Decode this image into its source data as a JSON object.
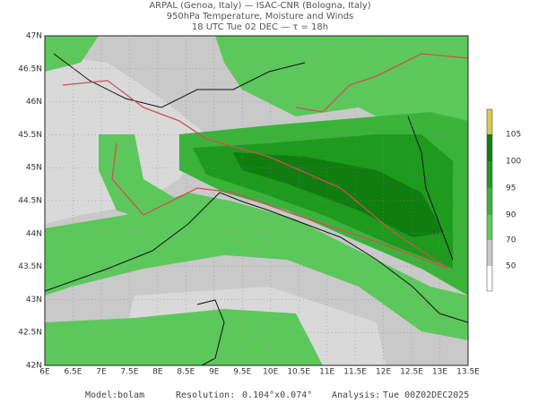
{
  "header": {
    "line1": "ARPAL (Genoa, Italy)  —  ISAC-CNR (Bologna, Italy)",
    "line2": "950hPa Temperature, Moisture and Winds",
    "line3": "18 UTC Tue 02 DEC  —  τ = 18h"
  },
  "map": {
    "lon_labels": [
      "6E",
      "6.5E",
      "7E",
      "7.5E",
      "8E",
      "8.5E",
      "9E",
      "9.5E",
      "10E",
      "10.5E",
      "11E",
      "11.5E",
      "12E",
      "12.5E",
      "13E",
      "13.5E"
    ],
    "lat_labels": [
      "42N",
      "42.5N",
      "43N",
      "43.5N",
      "44N",
      "44.5N",
      "45N",
      "45.5N",
      "46N",
      "46.5N",
      "47N"
    ]
  },
  "colorbar": {
    "levels": [
      105,
      100,
      95,
      90,
      70,
      50
    ]
  },
  "footer": {
    "model_label": "Model:",
    "model": "bolam",
    "resolution_label": "Resolution:",
    "resolution": "0.104°x0.074°",
    "analysis_label": "Analysis:",
    "analysis": "Tue 00Z02DEC2025"
  }
}
